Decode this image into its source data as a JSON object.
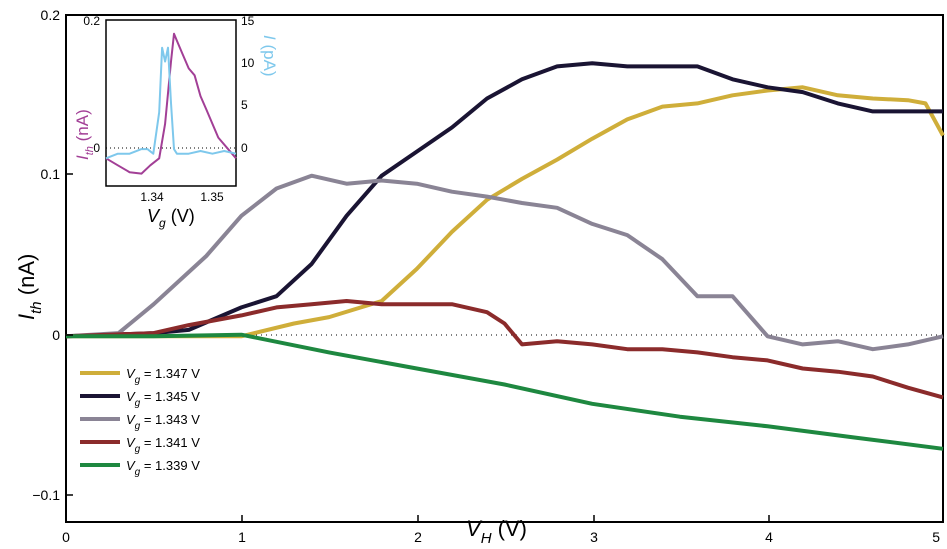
{
  "chart_data": [
    {
      "type": "line",
      "xlabel": "V_H (V)",
      "ylabel": "I_th (nA)",
      "xlim": [
        0,
        5
      ],
      "ylim": [
        -0.1,
        0.2
      ],
      "x_ticks": [
        "0",
        "1",
        "2",
        "3",
        "4",
        "5"
      ],
      "y_ticks": [
        "0.2",
        "0.1",
        "0",
        "−0.1"
      ],
      "grid": false,
      "zero_line": "dotted",
      "legend_position": "bottom-left",
      "series": [
        {
          "name": "V_g = 1.347 V",
          "color": "#cfae3a",
          "x": [
            0,
            0.5,
            1.0,
            1.3,
            1.5,
            1.8,
            2.0,
            2.2,
            2.4,
            2.6,
            2.8,
            3.0,
            3.2,
            3.4,
            3.6,
            3.8,
            4.0,
            4.2,
            4.4,
            4.6,
            4.8,
            4.9,
            5.0
          ],
          "y": [
            0.0,
            0.0,
            0.0,
            0.008,
            0.012,
            0.022,
            0.042,
            0.065,
            0.085,
            0.098,
            0.11,
            0.123,
            0.135,
            0.143,
            0.145,
            0.15,
            0.153,
            0.155,
            0.15,
            0.148,
            0.147,
            0.145,
            0.125
          ]
        },
        {
          "name": "V_g = 1.345 V",
          "color": "#1a1433",
          "x": [
            0,
            0.5,
            0.7,
            1.0,
            1.2,
            1.4,
            1.6,
            1.8,
            2.0,
            2.2,
            2.4,
            2.6,
            2.8,
            3.0,
            3.2,
            3.4,
            3.6,
            3.8,
            4.0,
            4.2,
            4.4,
            4.6,
            4.8,
            5.0
          ],
          "y": [
            0.0,
            0.002,
            0.004,
            0.018,
            0.025,
            0.045,
            0.075,
            0.1,
            0.115,
            0.13,
            0.148,
            0.16,
            0.168,
            0.17,
            0.168,
            0.168,
            0.168,
            0.16,
            0.155,
            0.152,
            0.145,
            0.14,
            0.14,
            0.14
          ]
        },
        {
          "name": "V_g = 1.343 V",
          "color": "#8a8495",
          "x": [
            0,
            0.3,
            0.5,
            0.8,
            1.0,
            1.2,
            1.4,
            1.6,
            1.8,
            2.0,
            2.2,
            2.4,
            2.6,
            2.8,
            3.0,
            3.2,
            3.4,
            3.6,
            3.8,
            4.0,
            4.2,
            4.4,
            4.6,
            4.8,
            5.0
          ],
          "y": [
            0.0,
            0.002,
            0.02,
            0.05,
            0.075,
            0.092,
            0.1,
            0.095,
            0.097,
            0.095,
            0.09,
            0.087,
            0.083,
            0.08,
            0.07,
            0.063,
            0.048,
            0.025,
            0.025,
            0.0,
            -0.005,
            -0.003,
            -0.008,
            -0.005,
            0.0
          ]
        },
        {
          "name": "V_g = 1.341 V",
          "color": "#8b2b2b",
          "x": [
            0,
            0.5,
            0.7,
            1.0,
            1.2,
            1.4,
            1.6,
            1.8,
            2.0,
            2.2,
            2.4,
            2.5,
            2.6,
            2.8,
            3.0,
            3.2,
            3.4,
            3.6,
            3.8,
            4.0,
            4.2,
            4.4,
            4.6,
            4.8,
            5.0
          ],
          "y": [
            0.0,
            0.002,
            0.007,
            0.013,
            0.018,
            0.02,
            0.022,
            0.02,
            0.02,
            0.02,
            0.015,
            0.008,
            -0.005,
            -0.003,
            -0.005,
            -0.008,
            -0.008,
            -0.01,
            -0.013,
            -0.015,
            -0.02,
            -0.022,
            -0.025,
            -0.032,
            -0.038
          ]
        },
        {
          "name": "V_g = 1.339 V",
          "color": "#1e8840",
          "x": [
            0,
            0.5,
            1.0,
            1.5,
            2.0,
            2.5,
            3.0,
            3.5,
            4.0,
            4.5,
            5.0
          ],
          "y": [
            0.0,
            0.0,
            0.001,
            -0.01,
            -0.02,
            -0.03,
            -0.042,
            -0.05,
            -0.056,
            -0.063,
            -0.07
          ]
        }
      ]
    },
    {
      "type": "line",
      "xlabel": "V_g (V)",
      "ylabel": "I_th (nA)",
      "y2label": "I (pA)",
      "xlim": [
        1.333,
        1.355
      ],
      "ylim": [
        -0.04,
        0.2
      ],
      "y2lim": [
        -3,
        15
      ],
      "x_ticks": [
        "1.34",
        "1.35"
      ],
      "y_ticks": [
        "0.2",
        "0.1",
        "0"
      ],
      "y2_ticks": [
        "15",
        "10",
        "5",
        "0"
      ],
      "series": [
        {
          "axis": "left",
          "color": "#a23f96",
          "x": [
            1.333,
            1.335,
            1.337,
            1.339,
            1.3405,
            1.342,
            1.343,
            1.344,
            1.3445,
            1.345,
            1.346,
            1.347,
            1.348,
            1.349,
            1.35,
            1.352,
            1.355
          ],
          "y": [
            0.0,
            -0.01,
            -0.02,
            -0.022,
            -0.01,
            0.0,
            0.05,
            0.14,
            0.18,
            0.17,
            0.15,
            0.13,
            0.12,
            0.09,
            0.07,
            0.03,
            0.0
          ]
        },
        {
          "axis": "right",
          "color": "#7ec8ec",
          "x": [
            1.333,
            1.335,
            1.337,
            1.339,
            1.34,
            1.341,
            1.342,
            1.3425,
            1.343,
            1.3435,
            1.344,
            1.3445,
            1.345,
            1.347,
            1.349,
            1.351,
            1.353,
            1.355
          ],
          "y": [
            0.0,
            0.5,
            0.5,
            1.0,
            1.0,
            0.5,
            5.0,
            12.0,
            10.5,
            12.0,
            6.0,
            1.0,
            0.5,
            0.5,
            0.8,
            0.5,
            0.8,
            0.5
          ]
        }
      ]
    }
  ],
  "main_labels": {
    "x_label_letter": "V",
    "x_label_sub": "H",
    "x_label_unit": " (V)",
    "y_label_letter": "I",
    "y_label_sub": "th",
    "y_label_unit": " (nA)",
    "x_ticks": [
      "0",
      "1",
      "2",
      "3",
      "4",
      "5"
    ],
    "y_ticks": [
      "0.2",
      "0.1",
      "0",
      "−0.1"
    ]
  },
  "legend": [
    {
      "letter": "V",
      "sub": "g",
      "rest": " = 1.347 V",
      "color": "#cfae3a"
    },
    {
      "letter": "V",
      "sub": "g",
      "rest": " = 1.345 V",
      "color": "#1a1433"
    },
    {
      "letter": "V",
      "sub": "g",
      "rest": " = 1.343 V",
      "color": "#8a8495"
    },
    {
      "letter": "V",
      "sub": "g",
      "rest": " = 1.341 V",
      "color": "#8b2b2b"
    },
    {
      "letter": "V",
      "sub": "g",
      "rest": " = 1.339 V",
      "color": "#1e8840"
    }
  ],
  "inset_labels": {
    "x_letter": "V",
    "x_sub": "g",
    "x_unit": " (V)",
    "y_letter": "I",
    "y_sub": "th",
    "y_unit": " (nA)",
    "y2_letter": "I",
    "y2_unit": " (pA)",
    "x_ticks": [
      "1.34",
      "1.35"
    ],
    "y_ticks": [
      "0.2",
      "0"
    ],
    "y2_ticks": [
      "15",
      "10",
      "5",
      "0"
    ]
  }
}
